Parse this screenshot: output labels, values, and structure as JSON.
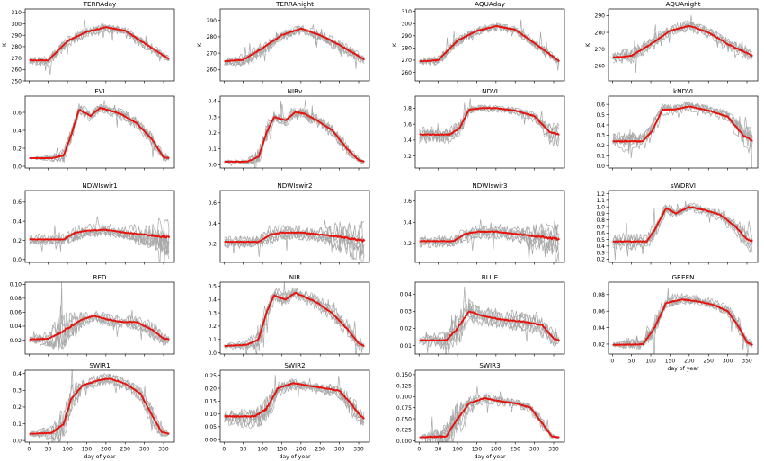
{
  "figure": {
    "xlabel": "day of year"
  },
  "chart_data": [
    {
      "type": "line",
      "title": "TERRAday",
      "ylabel": "K",
      "ylim": [
        250,
        313
      ],
      "yticks": [
        250,
        260,
        270,
        280,
        290,
        300,
        310
      ],
      "xlim": [
        -10,
        378
      ],
      "xticks": [],
      "show_xlabel": false,
      "mean": {
        "x": [
          1,
          50,
          100,
          150,
          200,
          250,
          300,
          365
        ],
        "y": [
          268,
          268,
          285,
          293,
          297,
          294,
          283,
          269
        ]
      },
      "band": [
        3,
        5,
        5,
        4,
        4,
        4,
        5,
        3
      ]
    },
    {
      "type": "line",
      "title": "TERRAnight",
      "ylabel": "K",
      "ylim": [
        253,
        297
      ],
      "yticks": [
        260,
        270,
        280,
        290
      ],
      "xlim": [
        -10,
        378
      ],
      "xticks": [],
      "show_xlabel": false,
      "mean": {
        "x": [
          1,
          50,
          100,
          150,
          200,
          250,
          300,
          365
        ],
        "y": [
          265,
          266,
          273,
          281,
          285,
          281,
          275,
          266
        ]
      },
      "band": [
        3,
        4,
        4,
        3,
        3,
        3,
        4,
        3
      ]
    },
    {
      "type": "line",
      "title": "AQUAday",
      "ylabel": "K",
      "ylim": [
        253,
        312
      ],
      "yticks": [
        260,
        270,
        280,
        290,
        300,
        310
      ],
      "xlim": [
        -10,
        378
      ],
      "xticks": [],
      "show_xlabel": false,
      "mean": {
        "x": [
          1,
          50,
          100,
          150,
          200,
          250,
          300,
          365
        ],
        "y": [
          269,
          270,
          286,
          294,
          298,
          295,
          284,
          269
        ]
      },
      "band": [
        3,
        5,
        5,
        4,
        4,
        4,
        5,
        3
      ]
    },
    {
      "type": "line",
      "title": "AQUAnight",
      "ylabel": "K",
      "ylim": [
        251,
        294
      ],
      "yticks": [
        260,
        270,
        280,
        290
      ],
      "xlim": [
        -10,
        378
      ],
      "xticks": [],
      "show_xlabel": false,
      "mean": {
        "x": [
          1,
          50,
          100,
          150,
          200,
          250,
          300,
          365
        ],
        "y": [
          265,
          266,
          273,
          281,
          284,
          280,
          273,
          266
        ]
      },
      "band": [
        3,
        4,
        4,
        3,
        3,
        3,
        4,
        3
      ]
    },
    {
      "type": "line",
      "title": "EVI",
      "ylabel": "",
      "ylim": [
        -0.02,
        0.78
      ],
      "yticks": [
        0.0,
        0.2,
        0.4,
        0.6
      ],
      "xlim": [
        -10,
        378
      ],
      "xticks": [],
      "show_xlabel": false,
      "mean": {
        "x": [
          1,
          60,
          90,
          110,
          130,
          160,
          185,
          210,
          240,
          280,
          320,
          350,
          365
        ],
        "y": [
          0.09,
          0.09,
          0.12,
          0.35,
          0.63,
          0.56,
          0.65,
          0.62,
          0.58,
          0.48,
          0.3,
          0.1,
          0.09
        ]
      },
      "band": [
        0.01,
        0.03,
        0.08,
        0.1,
        0.06,
        0.06,
        0.05,
        0.05,
        0.06,
        0.06,
        0.08,
        0.05,
        0.02
      ]
    },
    {
      "type": "line",
      "title": "NIRv",
      "ylabel": "",
      "ylim": [
        -0.02,
        0.43
      ],
      "yticks": [
        0.0,
        0.1,
        0.2,
        0.3,
        0.4
      ],
      "xlim": [
        -10,
        378
      ],
      "xticks": [],
      "show_xlabel": false,
      "mean": {
        "x": [
          1,
          60,
          90,
          110,
          130,
          160,
          185,
          210,
          240,
          280,
          320,
          350,
          365
        ],
        "y": [
          0.02,
          0.02,
          0.05,
          0.2,
          0.3,
          0.28,
          0.33,
          0.32,
          0.28,
          0.22,
          0.1,
          0.03,
          0.02
        ]
      },
      "band": [
        0.01,
        0.02,
        0.05,
        0.06,
        0.04,
        0.04,
        0.04,
        0.04,
        0.04,
        0.04,
        0.05,
        0.02,
        0.01
      ]
    },
    {
      "type": "line",
      "title": "NDVI",
      "ylabel": "",
      "ylim": [
        0.05,
        0.95
      ],
      "yticks": [
        0.2,
        0.4,
        0.6,
        0.8
      ],
      "xlim": [
        -10,
        378
      ],
      "xticks": [],
      "show_xlabel": false,
      "mean": {
        "x": [
          1,
          80,
          105,
          130,
          160,
          200,
          250,
          300,
          340,
          365
        ],
        "y": [
          0.47,
          0.47,
          0.55,
          0.78,
          0.8,
          0.8,
          0.77,
          0.7,
          0.5,
          0.47
        ]
      },
      "band": [
        0.1,
        0.1,
        0.1,
        0.05,
        0.04,
        0.04,
        0.04,
        0.06,
        0.12,
        0.15
      ]
    },
    {
      "type": "line",
      "title": "kNDVI",
      "ylabel": "",
      "ylim": [
        -0.02,
        0.68
      ],
      "yticks": [
        0.0,
        0.1,
        0.2,
        0.3,
        0.4,
        0.5,
        0.6
      ],
      "xlim": [
        -10,
        378
      ],
      "xticks": [],
      "show_xlabel": false,
      "mean": {
        "x": [
          1,
          80,
          105,
          130,
          160,
          200,
          250,
          300,
          340,
          365
        ],
        "y": [
          0.24,
          0.24,
          0.35,
          0.55,
          0.55,
          0.58,
          0.54,
          0.48,
          0.3,
          0.24
        ]
      },
      "band": [
        0.08,
        0.08,
        0.08,
        0.05,
        0.04,
        0.04,
        0.04,
        0.05,
        0.1,
        0.12
      ]
    },
    {
      "type": "line",
      "title": "NDWIswir1",
      "ylabel": "",
      "ylim": [
        -0.03,
        0.72
      ],
      "yticks": [
        0.0,
        0.2,
        0.4,
        0.6
      ],
      "xlim": [
        -10,
        378
      ],
      "xticks": [],
      "show_xlabel": false,
      "mean": {
        "x": [
          1,
          90,
          120,
          150,
          200,
          250,
          300,
          365
        ],
        "y": [
          0.21,
          0.21,
          0.28,
          0.3,
          0.31,
          0.28,
          0.26,
          0.23
        ]
      },
      "band": [
        0.05,
        0.05,
        0.08,
        0.06,
        0.06,
        0.06,
        0.12,
        0.2
      ]
    },
    {
      "type": "line",
      "title": "NDWIswir2",
      "ylabel": "",
      "ylim": [
        0.02,
        0.72
      ],
      "yticks": [
        0.2,
        0.4,
        0.6
      ],
      "xlim": [
        -10,
        378
      ],
      "xticks": [],
      "show_xlabel": false,
      "mean": {
        "x": [
          1,
          90,
          120,
          150,
          200,
          250,
          300,
          365
        ],
        "y": [
          0.22,
          0.22,
          0.29,
          0.31,
          0.31,
          0.29,
          0.27,
          0.23
        ]
      },
      "band": [
        0.05,
        0.05,
        0.08,
        0.06,
        0.06,
        0.06,
        0.12,
        0.2
      ]
    },
    {
      "type": "line",
      "title": "NDWIswir3",
      "ylabel": "",
      "ylim": [
        0.02,
        0.7
      ],
      "yticks": [
        0.2,
        0.4,
        0.6
      ],
      "xlim": [
        -10,
        378
      ],
      "xticks": [],
      "show_xlabel": false,
      "mean": {
        "x": [
          1,
          90,
          120,
          150,
          200,
          250,
          300,
          365
        ],
        "y": [
          0.22,
          0.22,
          0.29,
          0.31,
          0.31,
          0.29,
          0.27,
          0.24
        ]
      },
      "band": [
        0.05,
        0.05,
        0.08,
        0.06,
        0.06,
        0.06,
        0.12,
        0.2
      ]
    },
    {
      "type": "line",
      "title": "sWDRVI",
      "ylabel": "",
      "ylim": [
        0.15,
        1.25
      ],
      "yticks": [
        0.2,
        0.3,
        0.4,
        0.5,
        0.6,
        0.7,
        0.8,
        0.9,
        1.0,
        1.1,
        1.2
      ],
      "xlim": [
        -10,
        378
      ],
      "xticks": [],
      "show_xlabel": false,
      "mean": {
        "x": [
          1,
          90,
          110,
          140,
          165,
          200,
          240,
          280,
          320,
          350,
          365
        ],
        "y": [
          0.47,
          0.47,
          0.65,
          0.98,
          0.9,
          1.0,
          0.95,
          0.88,
          0.7,
          0.5,
          0.47
        ]
      },
      "band": [
        0.1,
        0.1,
        0.12,
        0.08,
        0.06,
        0.06,
        0.06,
        0.08,
        0.1,
        0.15,
        0.15
      ]
    },
    {
      "type": "line",
      "title": "RED",
      "ylabel": "",
      "ylim": [
        0.0,
        0.103
      ],
      "yticks": [
        0.02,
        0.04,
        0.06,
        0.08,
        0.1
      ],
      "xlim": [
        -10,
        378
      ],
      "xticks": [],
      "show_xlabel": false,
      "mean": {
        "x": [
          1,
          50,
          80,
          110,
          140,
          170,
          200,
          240,
          280,
          320,
          350,
          365
        ],
        "y": [
          0.021,
          0.022,
          0.03,
          0.04,
          0.05,
          0.055,
          0.05,
          0.046,
          0.046,
          0.035,
          0.022,
          0.021
        ]
      },
      "band": [
        0.004,
        0.01,
        0.025,
        0.02,
        0.01,
        0.008,
        0.008,
        0.008,
        0.01,
        0.012,
        0.008,
        0.005
      ]
    },
    {
      "type": "line",
      "title": "NIR",
      "ylabel": "",
      "ylim": [
        -0.01,
        0.53
      ],
      "yticks": [
        0.0,
        0.1,
        0.2,
        0.3,
        0.4,
        0.5
      ],
      "xlim": [
        -10,
        378
      ],
      "xticks": [],
      "show_xlabel": false,
      "mean": {
        "x": [
          1,
          60,
          90,
          110,
          130,
          160,
          185,
          210,
          240,
          280,
          320,
          350,
          365
        ],
        "y": [
          0.05,
          0.06,
          0.1,
          0.3,
          0.43,
          0.4,
          0.45,
          0.42,
          0.38,
          0.3,
          0.18,
          0.07,
          0.05
        ]
      },
      "band": [
        0.02,
        0.03,
        0.08,
        0.08,
        0.05,
        0.05,
        0.04,
        0.04,
        0.05,
        0.05,
        0.06,
        0.04,
        0.02
      ]
    },
    {
      "type": "line",
      "title": "BLUE",
      "ylabel": "",
      "ylim": [
        0.005,
        0.047
      ],
      "yticks": [
        0.01,
        0.02,
        0.03,
        0.04
      ],
      "xlim": [
        -10,
        378
      ],
      "xticks": [],
      "show_xlabel": false,
      "mean": {
        "x": [
          1,
          70,
          100,
          130,
          170,
          220,
          270,
          320,
          350,
          365
        ],
        "y": [
          0.013,
          0.013,
          0.02,
          0.03,
          0.027,
          0.025,
          0.024,
          0.022,
          0.014,
          0.013
        ]
      },
      "band": [
        0.002,
        0.005,
        0.01,
        0.006,
        0.005,
        0.005,
        0.005,
        0.006,
        0.004,
        0.003
      ]
    },
    {
      "type": "line",
      "title": "GREEN",
      "ylabel": "",
      "ylim": [
        0.008,
        0.095
      ],
      "yticks": [
        0.02,
        0.04,
        0.06,
        0.08
      ],
      "xlim": [
        -10,
        378
      ],
      "xticks": [
        0,
        50,
        100,
        150,
        200,
        250,
        300,
        350
      ],
      "show_xlabel": true,
      "mean": {
        "x": [
          1,
          80,
          110,
          140,
          180,
          220,
          260,
          300,
          330,
          350,
          365
        ],
        "y": [
          0.019,
          0.02,
          0.04,
          0.07,
          0.074,
          0.072,
          0.068,
          0.06,
          0.04,
          0.022,
          0.019
        ]
      },
      "band": [
        0.003,
        0.01,
        0.015,
        0.008,
        0.006,
        0.006,
        0.006,
        0.008,
        0.01,
        0.006,
        0.004
      ]
    },
    {
      "type": "line",
      "title": "SWIR1",
      "ylabel": "",
      "ylim": [
        -0.01,
        0.42
      ],
      "yticks": [
        0.0,
        0.1,
        0.2,
        0.3,
        0.4
      ],
      "xlim": [
        -10,
        378
      ],
      "xticks": [
        0,
        50,
        100,
        150,
        200,
        250,
        300,
        350
      ],
      "show_xlabel": true,
      "mean": {
        "x": [
          1,
          60,
          90,
          110,
          140,
          180,
          210,
          250,
          290,
          320,
          345,
          365
        ],
        "y": [
          0.04,
          0.045,
          0.1,
          0.25,
          0.33,
          0.36,
          0.37,
          0.34,
          0.28,
          0.15,
          0.05,
          0.04
        ]
      },
      "band": [
        0.01,
        0.04,
        0.1,
        0.07,
        0.03,
        0.03,
        0.03,
        0.03,
        0.04,
        0.06,
        0.03,
        0.01
      ]
    },
    {
      "type": "line",
      "title": "SWIR2",
      "ylabel": "",
      "ylim": [
        -0.01,
        0.27
      ],
      "yticks": [
        0.0,
        0.05,
        0.1,
        0.15,
        0.2,
        0.25
      ],
      "xlim": [
        -10,
        378
      ],
      "xticks": [
        0,
        50,
        100,
        150,
        200,
        250,
        300,
        350
      ],
      "show_xlabel": true,
      "mean": {
        "x": [
          1,
          80,
          110,
          140,
          180,
          220,
          260,
          300,
          330,
          350,
          365
        ],
        "y": [
          0.09,
          0.09,
          0.12,
          0.2,
          0.22,
          0.21,
          0.2,
          0.19,
          0.14,
          0.1,
          0.08
        ]
      },
      "band": [
        0.03,
        0.04,
        0.06,
        0.03,
        0.02,
        0.02,
        0.02,
        0.03,
        0.04,
        0.04,
        0.03
      ]
    },
    {
      "type": "line",
      "title": "SWIR3",
      "ylabel": "",
      "ylim": [
        -0.003,
        0.16
      ],
      "yticks": [
        0.0,
        0.025,
        0.05,
        0.075,
        0.1,
        0.125,
        0.15
      ],
      "xlim": [
        -10,
        378
      ],
      "xticks": [
        0,
        50,
        100,
        150,
        200,
        250,
        300,
        350
      ],
      "show_xlabel": true,
      "mean": {
        "x": [
          1,
          70,
          100,
          130,
          170,
          210,
          250,
          290,
          320,
          345,
          365
        ],
        "y": [
          0.008,
          0.01,
          0.05,
          0.085,
          0.097,
          0.09,
          0.085,
          0.075,
          0.04,
          0.01,
          0.008
        ]
      },
      "band": [
        0.002,
        0.03,
        0.04,
        0.015,
        0.012,
        0.01,
        0.01,
        0.01,
        0.015,
        0.006,
        0.002
      ]
    }
  ]
}
